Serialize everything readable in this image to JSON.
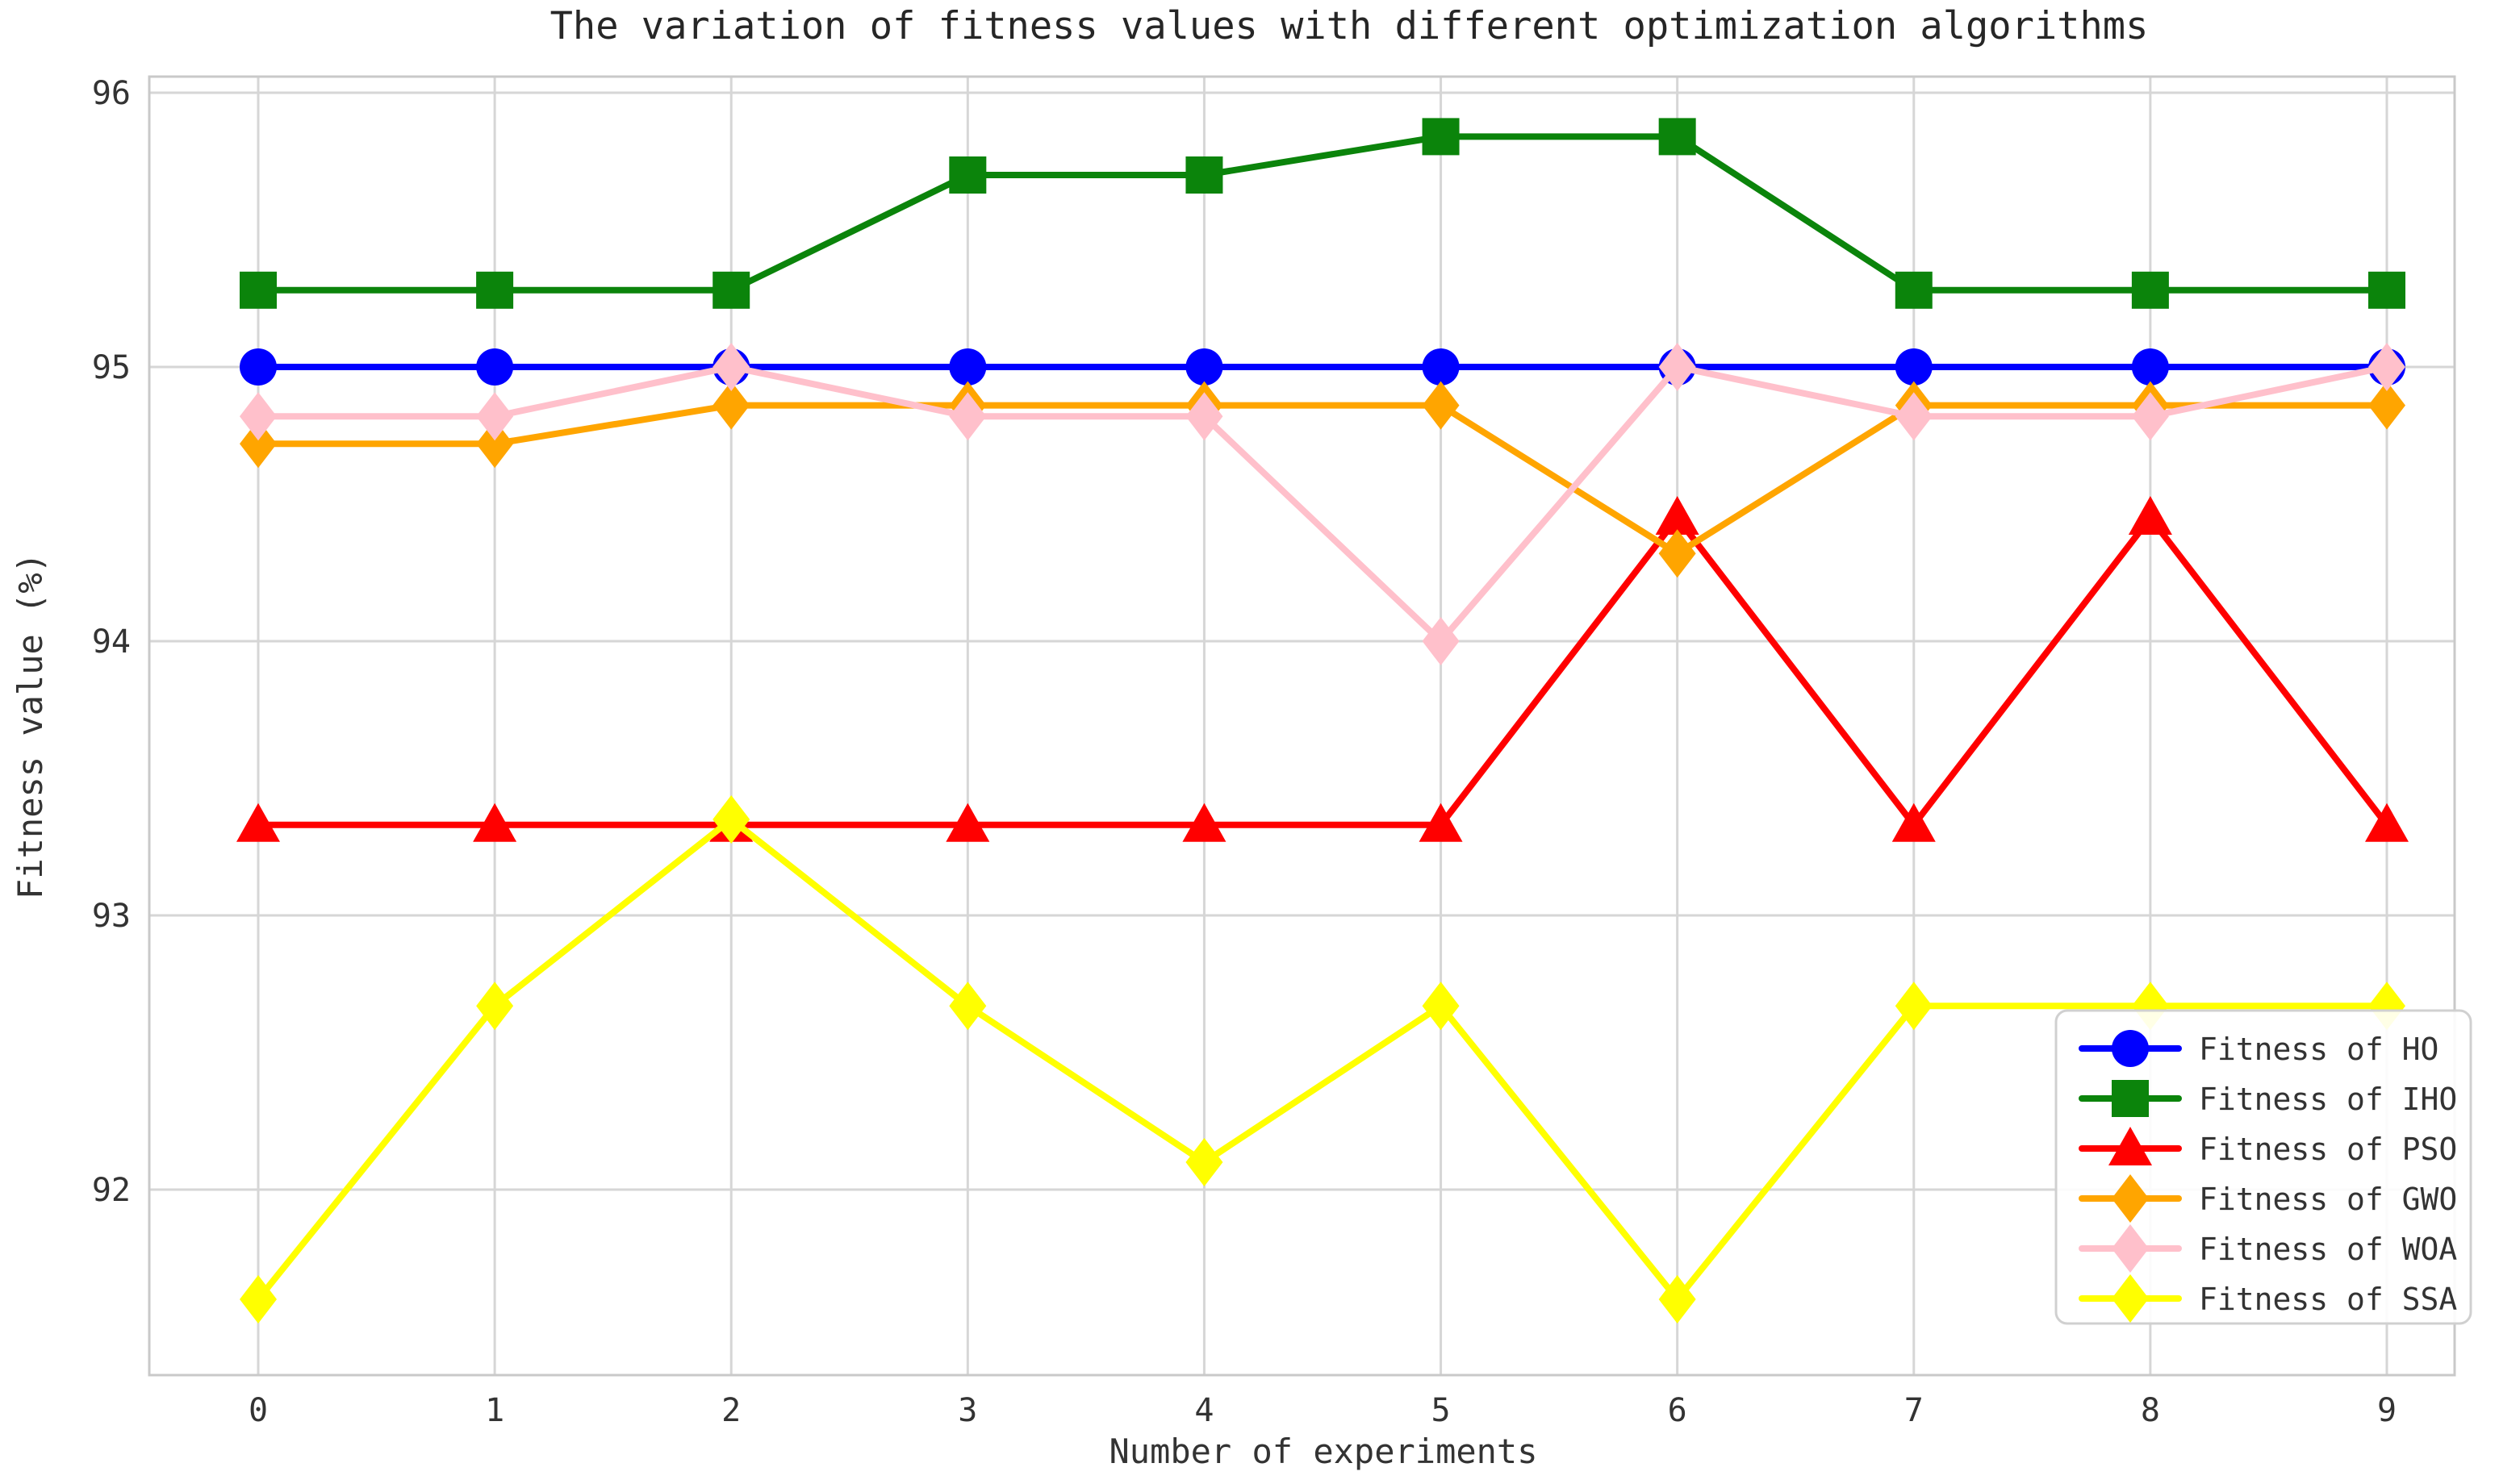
{
  "title": "The variation of fitness values with different optimization algorithms",
  "axes": {
    "xlabel": "Number of experiments",
    "ylabel": "Fitness value (%)",
    "x_tick_labels": [
      "0",
      "1",
      "2",
      "3",
      "4",
      "5",
      "6",
      "7",
      "8",
      "9"
    ],
    "y_tick_labels": [
      "96",
      "95",
      "94",
      "93",
      "92"
    ],
    "y_tick_values": [
      96,
      95,
      94,
      93,
      92
    ]
  },
  "legend": {
    "items": [
      "Fitness of HO",
      "Fitness of IHO",
      "Fitness of PSO",
      "Fitness of GWO",
      "Fitness of WOA",
      "Fitness of SSA"
    ],
    "position": "lower right"
  },
  "colors": {
    "grid": "#D6D6D6",
    "spine": "#C9C9C9",
    "text": "#333333",
    "title_text": "#262626",
    "legend_border": "#D0D0D0",
    "legend_bg": "#FFFFFF"
  },
  "chart_data": {
    "type": "line",
    "title": "The variation of fitness values with different optimization algorithms",
    "xlabel": "Number of experiments",
    "ylabel": "Fitness value (%)",
    "x": [
      0,
      1,
      2,
      3,
      4,
      5,
      6,
      7,
      8,
      9
    ],
    "xlim": [
      -0.46,
      9.29
    ],
    "ylim": [
      91.32,
      96.06
    ],
    "grid": true,
    "legend_position": "lower right",
    "series": [
      {
        "name": "Fitness of HO",
        "color": "#0000FF",
        "marker": "circle",
        "values": [
          95.0,
          95.0,
          95.0,
          95.0,
          95.0,
          95.0,
          95.0,
          95.0,
          95.0,
          95.0
        ]
      },
      {
        "name": "Fitness of IHO",
        "color": "#0B840B",
        "marker": "square",
        "values": [
          95.28,
          95.28,
          95.28,
          95.7,
          95.7,
          95.84,
          95.84,
          95.28,
          95.28,
          95.28
        ]
      },
      {
        "name": "Fitness of PSO",
        "color": "#FF0000",
        "marker": "triangle",
        "values": [
          93.33,
          93.33,
          93.33,
          93.33,
          93.33,
          93.33,
          94.45,
          93.33,
          94.45,
          93.33
        ]
      },
      {
        "name": "Fitness of GWO",
        "color": "#FFA500",
        "marker": "diamond",
        "values": [
          94.72,
          94.72,
          94.86,
          94.86,
          94.86,
          94.86,
          94.32,
          94.86,
          94.86,
          94.86
        ]
      },
      {
        "name": "Fitness of WOA",
        "color": "#FFC0CB",
        "marker": "diamond",
        "values": [
          94.82,
          94.82,
          95.0,
          94.82,
          94.82,
          94.0,
          95.0,
          94.82,
          94.82,
          95.0
        ]
      },
      {
        "name": "Fitness of SSA",
        "color": "#FFFF00",
        "marker": "diamond",
        "values": [
          91.6,
          92.67,
          93.35,
          92.67,
          92.1,
          92.67,
          91.6,
          92.67,
          92.67,
          92.67
        ]
      }
    ]
  }
}
